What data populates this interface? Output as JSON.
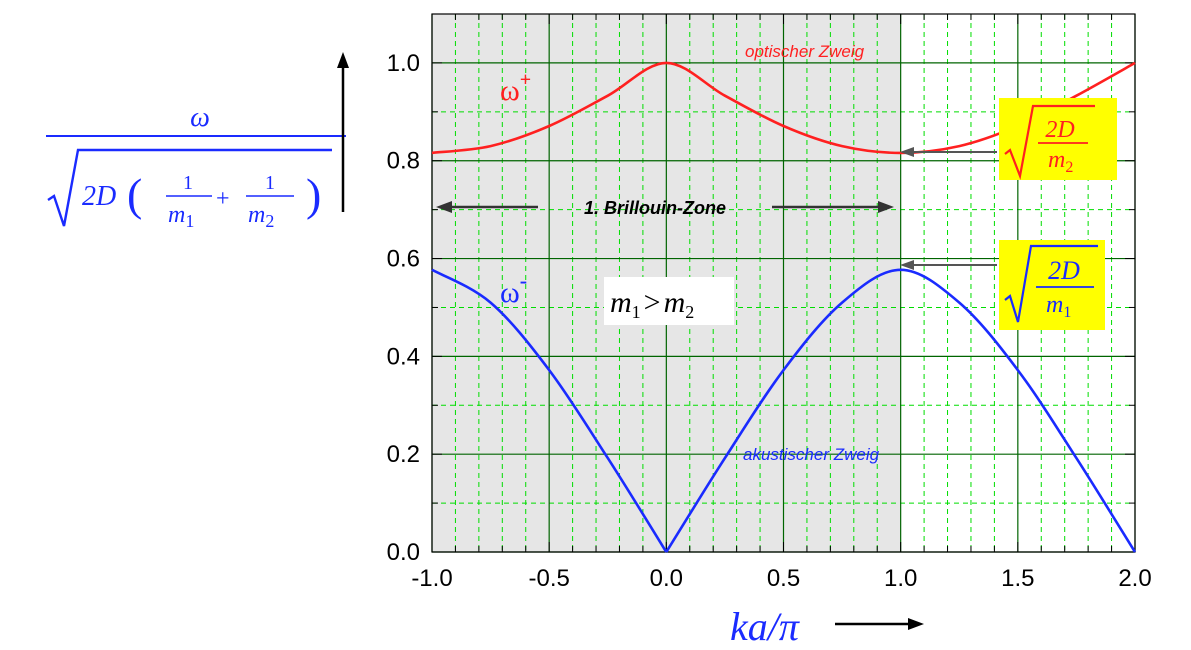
{
  "chart_data": {
    "type": "line",
    "xlim": [
      -1.0,
      2.0
    ],
    "ylim": [
      0.0,
      1.1
    ],
    "x_ticks": [
      "-1.0",
      "-0.5",
      "0.0",
      "0.5",
      "1.0",
      "1.5",
      "2.0"
    ],
    "y_ticks": [
      "0.0",
      "0.2",
      "0.4",
      "0.6",
      "0.8",
      "1.0"
    ],
    "xlabel": "ka/π",
    "ylabel": {
      "numerator": "ω",
      "radicand": "2D",
      "term1_num": "1",
      "term1_den": "m",
      "term1_sub": "1",
      "plus": "+",
      "term2_num": "1",
      "term2_den": "m",
      "term2_sub": "2"
    },
    "grid": true,
    "shaded_region": {
      "x": [
        -1.0,
        1.0
      ],
      "label": "1. Brillouin-Zone",
      "color": "#e6e6e6"
    },
    "series": [
      {
        "name": "optischer Zweig",
        "symbol": "ω",
        "sup": "+",
        "color": "#ff2020",
        "x": [
          -1.0,
          -0.75,
          -0.5,
          -0.25,
          0.0,
          0.25,
          0.5,
          0.75,
          1.0,
          1.25,
          1.5,
          1.75,
          2.0
        ],
        "y": [
          0.816,
          0.83,
          0.871,
          0.933,
          1.0,
          0.933,
          0.871,
          0.83,
          0.816,
          0.83,
          0.871,
          0.933,
          1.0
        ]
      },
      {
        "name": "akustischer Zweig",
        "symbol": "ω",
        "sup": "-",
        "color": "#1a2bff",
        "x": [
          -1.0,
          -0.75,
          -0.5,
          -0.25,
          0.0,
          0.25,
          0.5,
          0.75,
          1.0,
          1.25,
          1.5,
          1.75,
          2.0
        ],
        "y": [
          0.577,
          0.51,
          0.372,
          0.192,
          0.0,
          0.192,
          0.372,
          0.51,
          0.577,
          0.51,
          0.372,
          0.192,
          0.0
        ]
      }
    ],
    "annotations": {
      "mass_relation": {
        "m1": "m",
        "sub1": "1",
        "op": ">",
        "m2": "m",
        "sub2": "2"
      },
      "optical_edge": {
        "num": "2D",
        "den": "m",
        "sub": "2"
      },
      "acoustic_edge": {
        "num": "2D",
        "den": "m",
        "sub": "1"
      }
    },
    "colors": {
      "box_yellow": "#ffff00",
      "major_grid": "#006400",
      "minor_grid": "#00dd00",
      "label_blue": "#1a2bff"
    }
  }
}
